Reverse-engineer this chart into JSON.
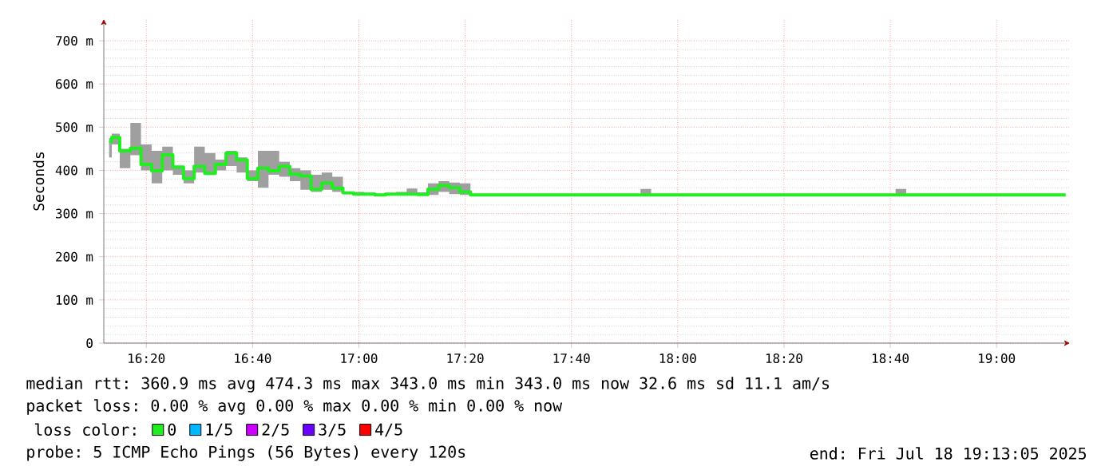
{
  "chart_data": {
    "type": "step",
    "ylabel": "Seconds",
    "legend_title": "loss color:",
    "legend": "bottom",
    "grid": true,
    "marker": "none",
    "line_style": "solid",
    "x": [
      16.2167,
      16.2333,
      16.2667,
      16.3,
      16.3333,
      16.3667,
      16.4,
      16.4333,
      16.4667,
      16.5,
      16.5333,
      16.5667,
      16.6,
      16.6333,
      16.6667,
      16.7,
      16.7333,
      16.7667,
      16.8,
      16.8333,
      16.8667,
      16.9,
      16.9333,
      16.9667,
      17,
      17.0333,
      17.0667,
      17.1,
      17.1333,
      17.1667,
      17.2,
      17.2333,
      17.2667,
      17.3,
      17.3333,
      17.3667,
      17.4,
      17.8667,
      17.9,
      17.9333,
      18.6667,
      18.7,
      18.7333,
      19.2167
    ],
    "xlim": [
      16.2,
      19.23
    ],
    "xticks": [
      {
        "value": 16.3333,
        "label": "16:20"
      },
      {
        "value": 16.6667,
        "label": "16:40"
      },
      {
        "value": 17,
        "label": "17:00"
      },
      {
        "value": 17.3333,
        "label": "17:20"
      },
      {
        "value": 17.6667,
        "label": "17:40"
      },
      {
        "value": 18,
        "label": "18:00"
      },
      {
        "value": 18.3333,
        "label": "18:20"
      },
      {
        "value": 18.6667,
        "label": "18:40"
      },
      {
        "value": 19,
        "label": "19:00"
      }
    ],
    "ylim": [
      0,
      750
    ],
    "yticks": [
      0,
      {
        "value": 100,
        "label": "100 m"
      },
      {
        "value": 200,
        "label": "200 m"
      },
      {
        "value": 300,
        "label": "300 m"
      },
      {
        "value": 400,
        "label": "400 m"
      },
      {
        "value": 500,
        "label": "500 m"
      },
      {
        "value": 600,
        "label": "600 m"
      },
      {
        "value": 700,
        "label": "700 m"
      }
    ],
    "series": [
      {
        "name": "0",
        "color": "#20ee20",
        "values": [
          467,
          476,
          445,
          451,
          414,
          399,
          436,
          408,
          381,
          409,
          393,
          414,
          440,
          424,
          381,
          405,
          399,
          409,
          391,
          387,
          356,
          371,
          359,
          348,
          345,
          345,
          343,
          345,
          345,
          345,
          344,
          356,
          365,
          360,
          350,
          343,
          343,
          343,
          343,
          343,
          343,
          343,
          343,
          343
        ],
        "lower": [
          430,
          460,
          405,
          435,
          400,
          370,
          400,
          390,
          370,
          395,
          390,
          400,
          410,
          395,
          375,
          360,
          390,
          385,
          375,
          355,
          350,
          355,
          350,
          345,
          343,
          343,
          343,
          343,
          343,
          343,
          343,
          343,
          350,
          345,
          343,
          343,
          343,
          343,
          343,
          343,
          343,
          343,
          343,
          343
        ],
        "upper": [
          475,
          485,
          450,
          510,
          460,
          445,
          455,
          410,
          400,
          455,
          440,
          425,
          445,
          430,
          400,
          445,
          445,
          420,
          405,
          400,
          390,
          395,
          385,
          350,
          350,
          348,
          345,
          347,
          350,
          358,
          349,
          370,
          375,
          372,
          370,
          345,
          345,
          343,
          357,
          343,
          343,
          357,
          343,
          343
        ]
      },
      {
        "name": "1/5",
        "color": "#00b8ff",
        "values": [
          null,
          null,
          null,
          null,
          null,
          null,
          null,
          null,
          null,
          null,
          null,
          null,
          null,
          null,
          null,
          null,
          null,
          null,
          null,
          null,
          null,
          null,
          null,
          null,
          null,
          null,
          null,
          null,
          null,
          null,
          null,
          null,
          null,
          null,
          null,
          null,
          null,
          null,
          null,
          null,
          null,
          null,
          null,
          null
        ]
      },
      {
        "name": "2/5",
        "color": "#cc00ff",
        "values": [
          null,
          null,
          null,
          null,
          null,
          null,
          null,
          null,
          null,
          null,
          null,
          null,
          null,
          null,
          null,
          null,
          null,
          null,
          null,
          null,
          null,
          null,
          null,
          null,
          null,
          null,
          null,
          null,
          null,
          null,
          null,
          null,
          null,
          null,
          null,
          null,
          null,
          null,
          null,
          null,
          null,
          null,
          null,
          null
        ]
      },
      {
        "name": "3/5",
        "color": "#6a00ff",
        "values": [
          null,
          null,
          null,
          null,
          null,
          null,
          null,
          null,
          null,
          null,
          null,
          null,
          null,
          null,
          null,
          null,
          null,
          null,
          null,
          null,
          null,
          null,
          null,
          null,
          null,
          null,
          null,
          null,
          null,
          null,
          null,
          null,
          null,
          null,
          null,
          null,
          null,
          null,
          null,
          null,
          null,
          null,
          null,
          null
        ]
      },
      {
        "name": "4/5",
        "color": "#ff0000",
        "values": [
          null,
          null,
          null,
          null,
          null,
          null,
          null,
          null,
          null,
          null,
          null,
          null,
          null,
          null,
          null,
          null,
          null,
          null,
          null,
          null,
          null,
          null,
          null,
          null,
          null,
          null,
          null,
          null,
          null,
          null,
          null,
          null,
          null,
          null,
          null,
          null,
          null,
          null,
          null,
          null,
          null,
          null,
          null,
          null
        ]
      }
    ],
    "annotations": [
      "median rtt: 360.9 ms avg 474.3 ms max 343.0 ms min 343.0 ms now 32.6 ms sd 11.1 am/s",
      "packet loss: 0.00 % avg 0.00 % max 0.00 % min 0.00 % now",
      "probe: 5 ICMP Echo Pings (56 Bytes) every 120s",
      "end: Fri Jul 18 19:13:05 2025"
    ]
  }
}
